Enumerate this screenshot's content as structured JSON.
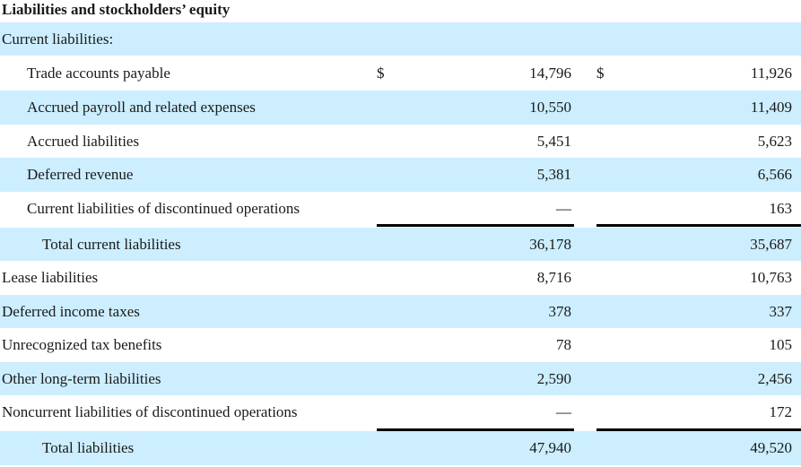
{
  "title": "Liabilities and stockholders’ equity",
  "currency_symbol": "$",
  "rows": [
    {
      "label": "Current liabilities:",
      "v1": "",
      "v2": ""
    },
    {
      "label": "Trade accounts payable",
      "v1": "14,796",
      "v2": "11,926"
    },
    {
      "label": "Accrued payroll and related expenses",
      "v1": "10,550",
      "v2": "11,409"
    },
    {
      "label": "Accrued liabilities",
      "v1": "5,451",
      "v2": "5,623"
    },
    {
      "label": "Deferred revenue",
      "v1": "5,381",
      "v2": "6,566"
    },
    {
      "label": "Current liabilities of discontinued operations",
      "v1": "—",
      "v2": "163"
    },
    {
      "label": "Total current liabilities",
      "v1": "36,178",
      "v2": "35,687"
    },
    {
      "label": "Lease liabilities",
      "v1": "8,716",
      "v2": "10,763"
    },
    {
      "label": "Deferred income taxes",
      "v1": "378",
      "v2": "337"
    },
    {
      "label": "Unrecognized tax benefits",
      "v1": "78",
      "v2": "105"
    },
    {
      "label": "Other long-term liabilities",
      "v1": "2,590",
      "v2": "2,456"
    },
    {
      "label": "Noncurrent liabilities of discontinued operations",
      "v1": "—",
      "v2": "172"
    },
    {
      "label": "Total liabilities",
      "v1": "47,940",
      "v2": "49,520"
    }
  ]
}
